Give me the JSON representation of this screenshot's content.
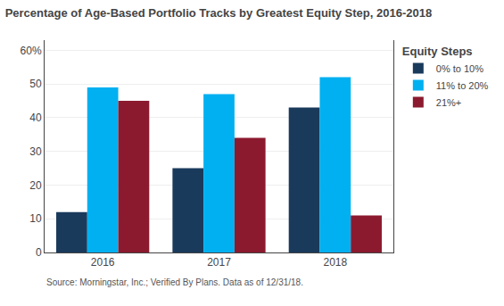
{
  "chart_data": {
    "type": "bar",
    "title": "Percentage of Age-Based Portfolio Tracks by Greatest Equity Step, 2016-2018",
    "categories": [
      "2016",
      "2017",
      "2018"
    ],
    "series": [
      {
        "name": "0% to 10%",
        "values": [
          12,
          25,
          43
        ],
        "color": "#1a3a5c"
      },
      {
        "name": "11% to 20%",
        "values": [
          49,
          47,
          52
        ],
        "color": "#00b0f0"
      },
      {
        "name": "21%+",
        "values": [
          45,
          34,
          11
        ],
        "color": "#8b1a2e"
      }
    ],
    "legend_title": "Equity Steps",
    "annotations": [
      "Source: Morningstar, Inc.; Verified By Plans. Data as of 12/31/18."
    ],
    "ylim": [
      0,
      63
    ],
    "yticks": [
      0,
      10,
      20,
      30,
      40,
      50,
      {
        "value": 60,
        "label": "60%"
      }
    ],
    "grid": true,
    "legend": "right"
  }
}
